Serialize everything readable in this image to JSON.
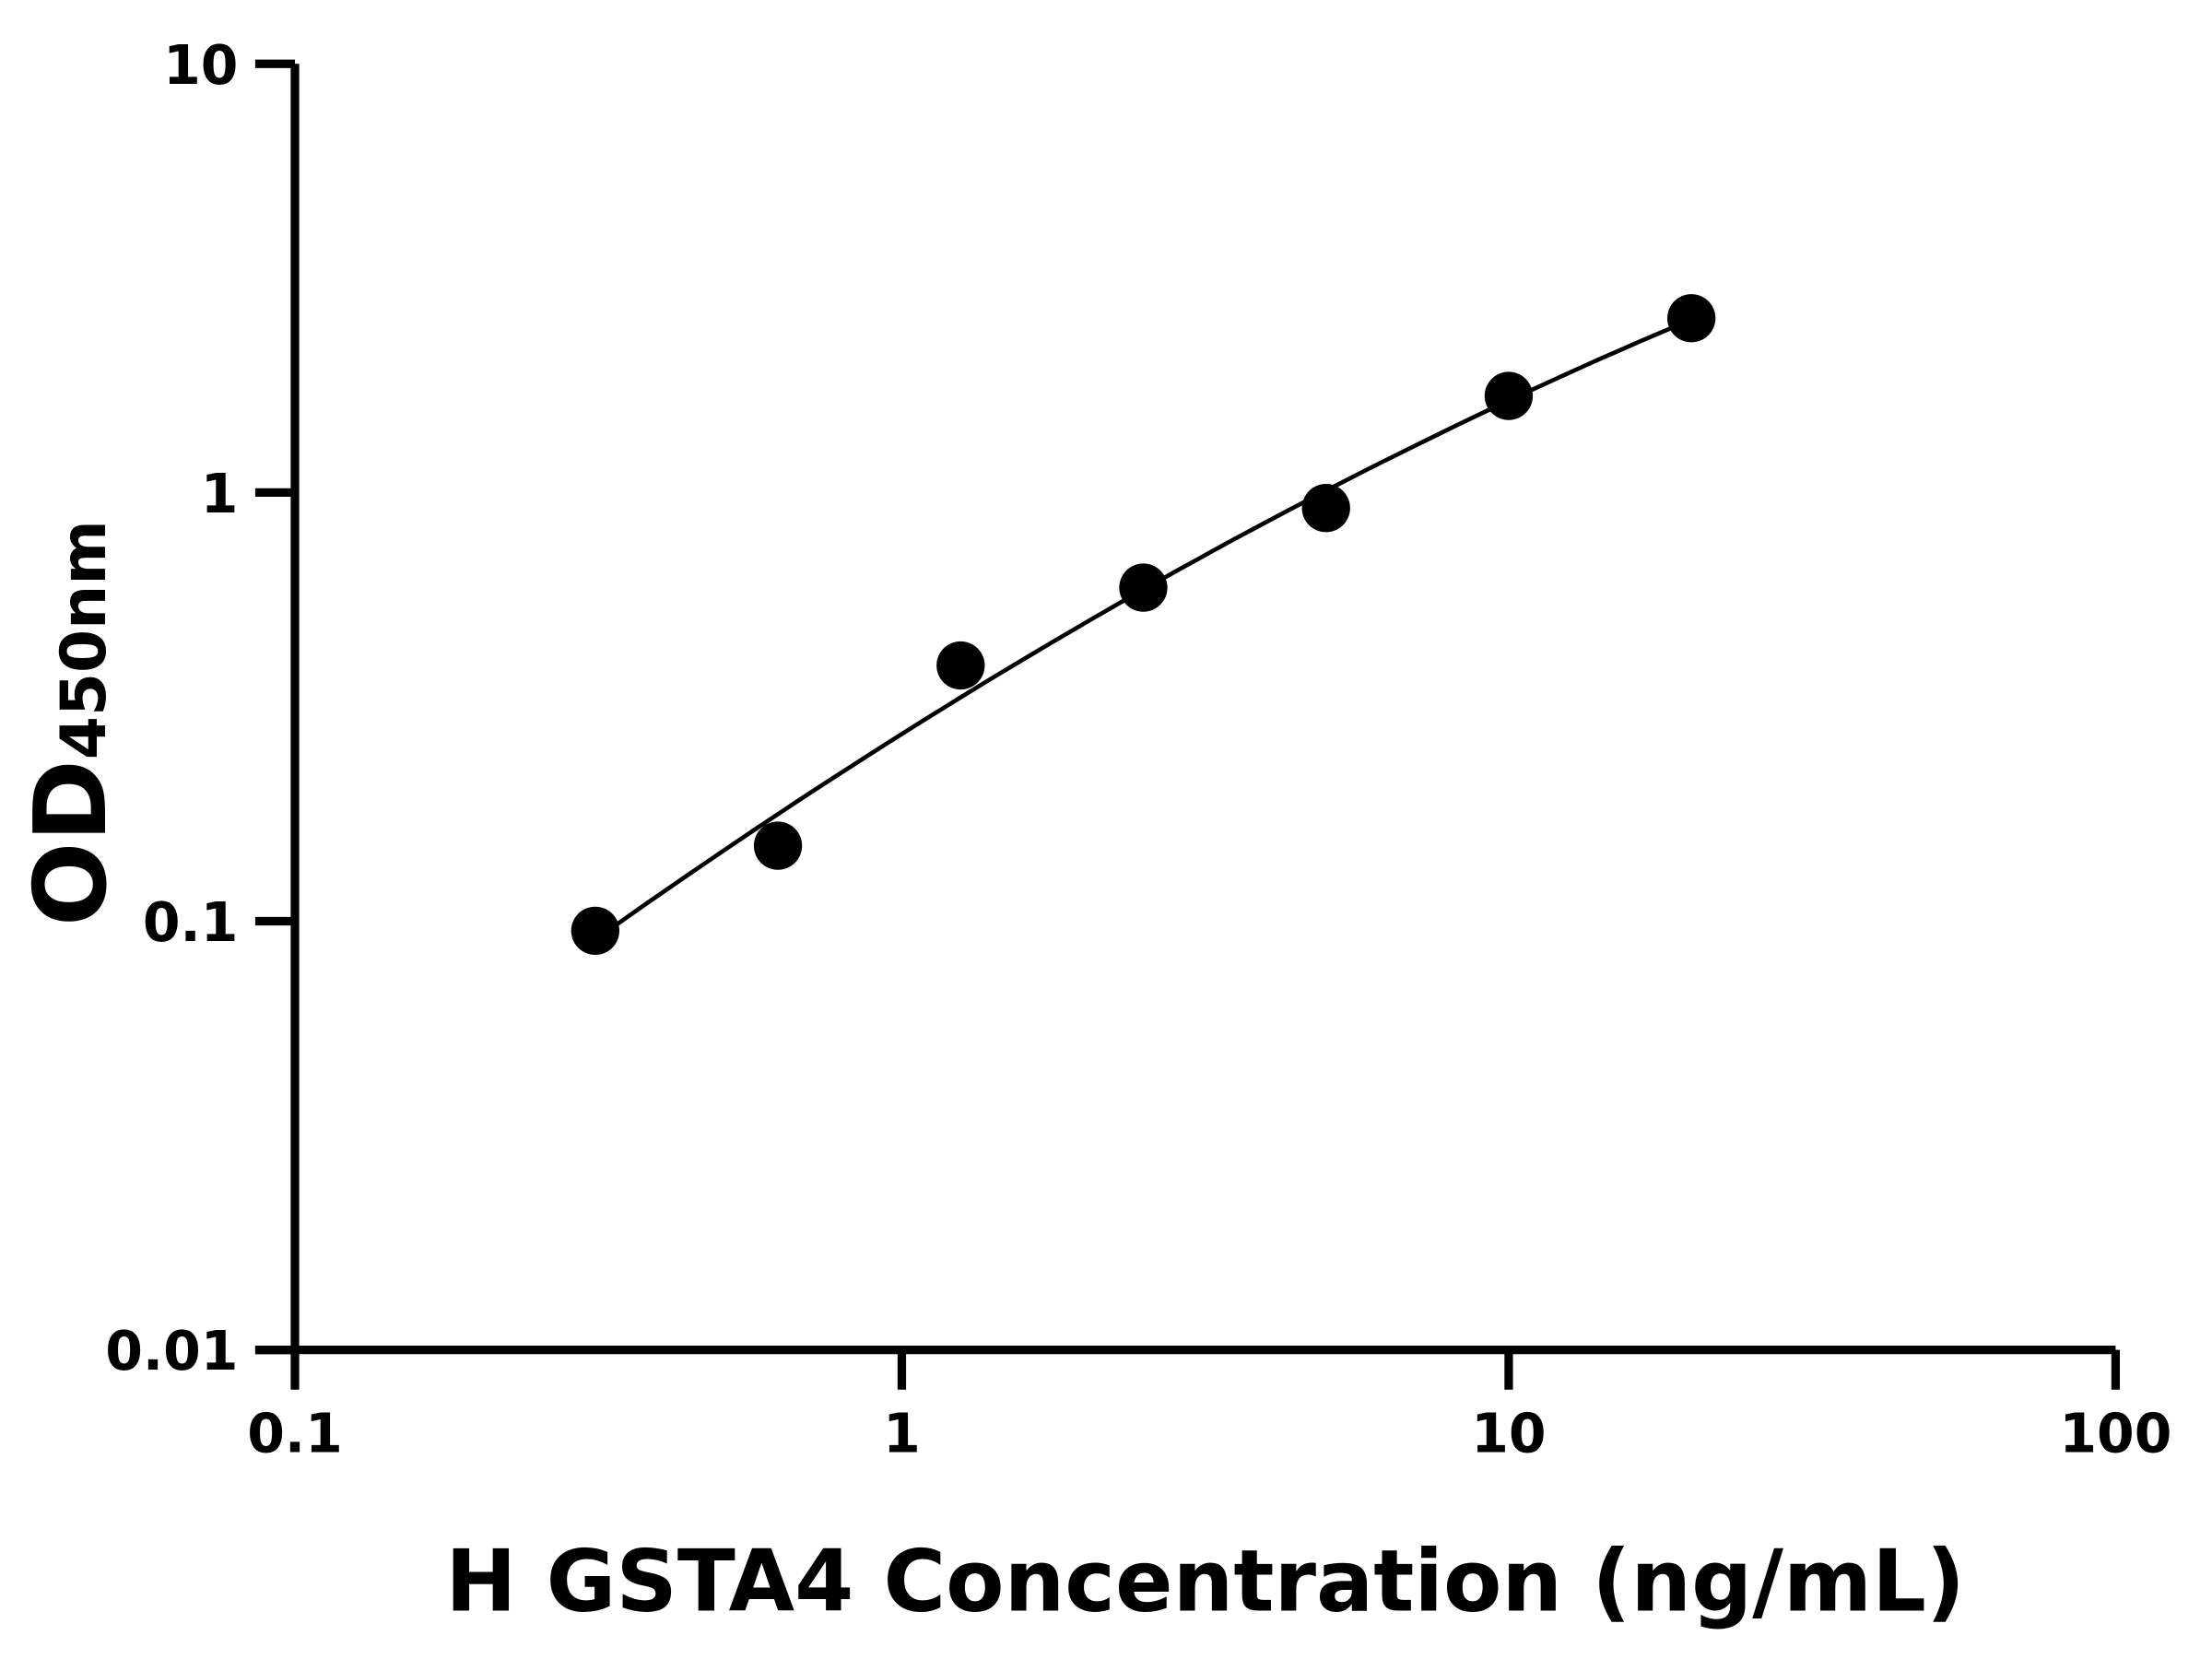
{
  "chart_data": {
    "type": "scatter",
    "title": "",
    "xlabel": "H GSTA4 Concentration (ng/mL)",
    "ylabel_main": "OD",
    "ylabel_sub": "450nm",
    "x_scale": "log",
    "y_scale": "log",
    "xlim": [
      0.1,
      100
    ],
    "ylim": [
      0.01,
      10
    ],
    "x_ticks": [
      "0.1",
      "1",
      "10",
      "100"
    ],
    "y_ticks": [
      "0.01",
      "0.1",
      "1",
      "10"
    ],
    "grid": false,
    "legend": "none",
    "fit_curve": true,
    "marker_color": "#000000",
    "line_color": "#000000",
    "points": [
      {
        "x": 0.3125,
        "y": 0.095
      },
      {
        "x": 0.625,
        "y": 0.15
      },
      {
        "x": 1.25,
        "y": 0.395
      },
      {
        "x": 2.5,
        "y": 0.6
      },
      {
        "x": 5,
        "y": 0.92
      },
      {
        "x": 10,
        "y": 1.68
      },
      {
        "x": 20,
        "y": 2.55
      }
    ]
  }
}
